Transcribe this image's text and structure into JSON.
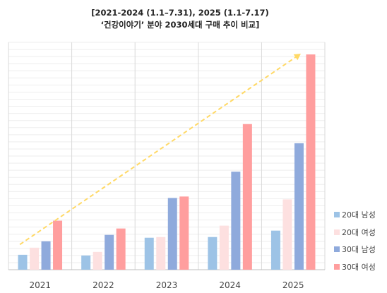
{
  "chart_data": {
    "type": "bar",
    "title": "[2021-2024 (1.1–7.31), 2025 (1.1-7.17)",
    "subtitle": "‘건강이야기’ 분야 2030세대 구매 추이 비교]",
    "categories": [
      "2021",
      "2022",
      "2023",
      "2024",
      "2025"
    ],
    "series": [
      {
        "name": "20대 남성",
        "color": "#9dc3e6",
        "values": [
          21,
          20,
          45,
          46,
          55
        ]
      },
      {
        "name": "20대 여성",
        "color": "#fde0e0",
        "values": [
          31,
          25,
          46,
          62,
          99
        ]
      },
      {
        "name": "30대 남성",
        "color": "#8faadc",
        "values": [
          40,
          49,
          101,
          138,
          178
        ]
      },
      {
        "name": "30대 여성",
        "color": "#ff9e9e",
        "values": [
          69,
          58,
          103,
          205,
          303
        ]
      }
    ],
    "ylim": [
      0,
      320
    ],
    "grid": true,
    "legend": "bottom-right",
    "trend_arrow": {
      "color": "#ffd966"
    }
  }
}
